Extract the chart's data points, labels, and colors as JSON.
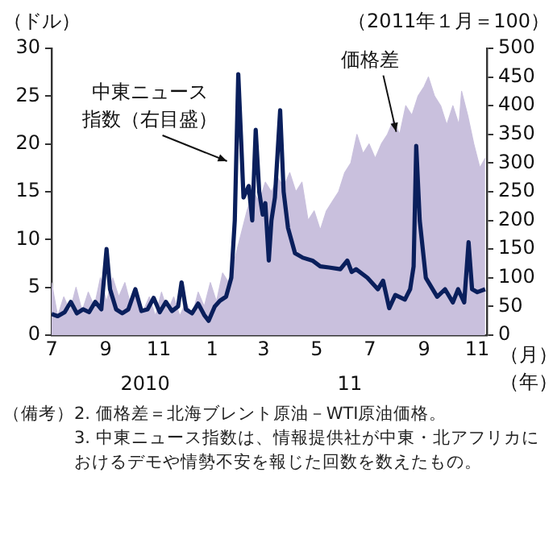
{
  "chart_data": {
    "type": "line",
    "ylabel": "（ドル）",
    "y2label": "（2011年１月＝100）",
    "xlabel": "（月）",
    "xlim": [
      "2010-07-01",
      "2011-11-12"
    ],
    "xticks": [
      {
        "value": "2010-07-01",
        "label": "7"
      },
      {
        "value": "2010-09-01",
        "label": "9"
      },
      {
        "value": "2010-11-01",
        "label": "11"
      },
      {
        "value": "2011-01-01",
        "label": "1"
      },
      {
        "value": "2011-03-01",
        "label": "3"
      },
      {
        "value": "2011-05-01",
        "label": "5"
      },
      {
        "value": "2011-07-01",
        "label": "7"
      },
      {
        "value": "2011-09-01",
        "label": "9"
      },
      {
        "value": "2011-11-01",
        "label": "11"
      }
    ],
    "ylim": [
      0,
      30
    ],
    "yticks": [
      0,
      5,
      10,
      15,
      20,
      25,
      30
    ],
    "y2lim": [
      0,
      500
    ],
    "y2ticks": [
      0,
      50,
      100,
      150,
      200,
      250,
      300,
      350,
      400,
      450,
      500
    ],
    "grid": false,
    "legend": false,
    "marker": "none",
    "line_style": "solid",
    "series": [
      {
        "name": "価格差",
        "type": "area",
        "color": "#c9c0dd",
        "x": [
          "2010-07-01",
          "2010-07-08",
          "2010-07-15",
          "2010-07-22",
          "2010-07-29",
          "2010-08-05",
          "2010-08-12",
          "2010-08-19",
          "2010-08-26",
          "2010-09-02",
          "2010-09-09",
          "2010-09-16",
          "2010-09-23",
          "2010-09-30",
          "2010-10-07",
          "2010-10-14",
          "2010-10-21",
          "2010-10-28",
          "2010-11-04",
          "2010-11-11",
          "2010-11-18",
          "2010-11-25",
          "2010-12-02",
          "2010-12-09",
          "2010-12-16",
          "2010-12-23",
          "2010-12-30",
          "2011-01-06",
          "2011-01-13",
          "2011-01-20",
          "2011-01-27",
          "2011-02-03",
          "2011-02-10",
          "2011-02-17",
          "2011-02-24",
          "2011-03-03",
          "2011-03-10",
          "2011-03-17",
          "2011-03-24",
          "2011-03-31",
          "2011-04-07",
          "2011-04-14",
          "2011-04-21",
          "2011-04-28",
          "2011-05-05",
          "2011-05-12",
          "2011-05-19",
          "2011-05-26",
          "2011-06-02",
          "2011-06-09",
          "2011-06-16",
          "2011-06-23",
          "2011-06-30",
          "2011-07-07",
          "2011-07-14",
          "2011-07-21",
          "2011-07-28",
          "2011-08-04",
          "2011-08-11",
          "2011-08-18",
          "2011-08-25",
          "2011-09-01",
          "2011-09-06",
          "2011-09-13",
          "2011-09-20",
          "2011-09-27",
          "2011-10-04",
          "2011-10-11",
          "2011-10-14",
          "2011-10-21",
          "2011-10-28",
          "2011-11-04",
          "2011-11-10"
        ],
        "values": [
          5.5,
          2,
          4,
          2.5,
          5,
          2.5,
          4.5,
          3,
          6,
          3.5,
          6,
          4,
          5.5,
          3,
          4.5,
          2.5,
          4,
          2,
          4.5,
          2.5,
          4,
          2,
          3.5,
          2,
          4.5,
          3,
          5.5,
          3.5,
          6.5,
          5.5,
          8,
          10.5,
          13,
          15,
          14,
          16,
          15,
          16.5,
          15.5,
          17,
          15,
          16,
          12,
          13,
          11,
          13,
          14,
          15,
          17,
          18,
          21,
          19,
          20,
          18.5,
          20,
          21,
          22.5,
          21,
          24,
          23,
          25,
          26,
          27,
          25,
          24,
          22,
          24,
          22,
          25.5,
          23,
          20,
          17.5,
          18.5
        ]
      },
      {
        "name": "中東ニュース指数（右目盛）",
        "type": "line",
        "axis": "y2",
        "color": "#0a1f5c",
        "x": [
          "2010-07-01",
          "2010-07-08",
          "2010-07-16",
          "2010-07-23",
          "2010-07-30",
          "2010-08-06",
          "2010-08-13",
          "2010-08-20",
          "2010-08-27",
          "2010-09-02",
          "2010-09-06",
          "2010-09-13",
          "2010-09-20",
          "2010-09-27",
          "2010-10-05",
          "2010-10-12",
          "2010-10-19",
          "2010-10-26",
          "2010-11-02",
          "2010-11-09",
          "2010-11-16",
          "2010-11-23",
          "2010-11-27",
          "2010-12-02",
          "2010-12-09",
          "2010-12-16",
          "2010-12-23",
          "2010-12-28",
          "2011-01-04",
          "2011-01-10",
          "2011-01-17",
          "2011-01-23",
          "2011-01-27",
          "2011-01-31",
          "2011-02-03",
          "2011-02-06",
          "2011-02-12",
          "2011-02-16",
          "2011-02-20",
          "2011-02-24",
          "2011-02-28",
          "2011-03-03",
          "2011-03-07",
          "2011-03-10",
          "2011-03-14",
          "2011-03-20",
          "2011-03-24",
          "2011-03-29",
          "2011-04-06",
          "2011-04-15",
          "2011-04-26",
          "2011-05-05",
          "2011-05-15",
          "2011-05-28",
          "2011-06-05",
          "2011-06-10",
          "2011-06-15",
          "2011-06-28",
          "2011-07-10",
          "2011-07-16",
          "2011-07-23",
          "2011-07-30",
          "2011-08-10",
          "2011-08-16",
          "2011-08-20",
          "2011-08-23",
          "2011-08-27",
          "2011-09-03",
          "2011-09-16",
          "2011-09-25",
          "2011-10-04",
          "2011-10-10",
          "2011-10-17",
          "2011-10-22",
          "2011-10-26",
          "2011-11-01",
          "2011-11-10"
        ],
        "values": [
          37,
          33,
          40,
          58,
          38,
          45,
          40,
          58,
          45,
          150,
          80,
          45,
          38,
          45,
          80,
          42,
          45,
          65,
          40,
          58,
          42,
          50,
          92,
          45,
          38,
          55,
          35,
          25,
          50,
          60,
          67,
          100,
          200,
          455,
          350,
          240,
          260,
          200,
          358,
          250,
          210,
          230,
          130,
          200,
          240,
          392,
          250,
          187,
          143,
          135,
          130,
          120,
          118,
          115,
          130,
          110,
          115,
          100,
          80,
          95,
          47,
          70,
          62,
          80,
          120,
          330,
          200,
          100,
          67,
          80,
          57,
          80,
          57,
          162,
          80,
          75,
          80
        ]
      }
    ],
    "annotations": [
      "2010",
      "11",
      "（年）",
      "（備考）",
      "2. 価格差＝北海ブレント原油－WTI原油価格。",
      "3. 中東ニュース指数は、情報提供社が中東・北アフリカにおけるデモや情勢不安を報じた回数を数えたもの。"
    ]
  }
}
